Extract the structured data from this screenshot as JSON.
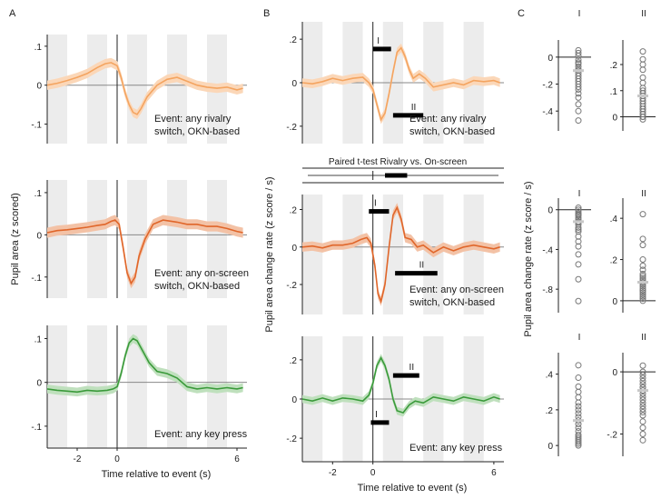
{
  "figure": {
    "panel_letters": [
      "A",
      "B",
      "C"
    ],
    "ttest_label": "Paired t-test Rivalry vs. On-screen",
    "colors": {
      "rivalry": "#f4a460",
      "rivalry_band": "#fbd7b8",
      "onscreen": "#e0662a",
      "onscreen_band": "#f3c2a6",
      "keypress": "#3a9a3a",
      "keypress_band": "#bfe0bd",
      "stripe": "#ececec",
      "dots": "#777777",
      "median": "#c8c8c8"
    }
  },
  "chart_data": [
    {
      "id": "A1",
      "type": "line",
      "panel": "A",
      "title": "",
      "xlabel": "",
      "ylabel": "",
      "xlim": [
        -3.5,
        6.5
      ],
      "ylim": [
        -0.15,
        0.13
      ],
      "yticks": [
        0.1,
        0,
        -0.1
      ],
      "ytick_labels": [
        ".1",
        "0",
        "-.1"
      ],
      "xticks": [],
      "xtick_labels": [],
      "event_label": [
        "Event: any rivalry",
        "switch, OKN-based"
      ],
      "series": [
        {
          "name": "pupil area",
          "color_key": "rivalry",
          "x": [
            -3.5,
            -3,
            -2.5,
            -2,
            -1.5,
            -1,
            -0.6,
            -0.3,
            0,
            0.2,
            0.4,
            0.6,
            0.8,
            1.0,
            1.2,
            1.5,
            2,
            2.5,
            3,
            3.5,
            4,
            4.5,
            5,
            5.5,
            6,
            6.3
          ],
          "values": [
            0.0,
            0.005,
            0.012,
            0.02,
            0.03,
            0.045,
            0.055,
            0.058,
            0.05,
            0.02,
            -0.02,
            -0.05,
            -0.07,
            -0.075,
            -0.06,
            -0.03,
            0.0,
            0.015,
            0.02,
            0.01,
            0.0,
            -0.005,
            -0.008,
            -0.005,
            -0.012,
            -0.008
          ],
          "band": 0.012
        }
      ],
      "bars": []
    },
    {
      "id": "A2",
      "type": "line",
      "panel": "A",
      "title": "",
      "xlabel": "",
      "ylabel": "Pupil area (z scored)",
      "xlim": [
        -3.5,
        6.5
      ],
      "ylim": [
        -0.15,
        0.13
      ],
      "yticks": [
        0.1,
        0,
        -0.1
      ],
      "ytick_labels": [
        ".1",
        "0",
        "-.1"
      ],
      "xticks": [],
      "xtick_labels": [],
      "event_label": [
        "Event: any on-screen",
        "switch, OKN-based"
      ],
      "series": [
        {
          "name": "pupil area",
          "color_key": "onscreen",
          "x": [
            -3.5,
            -3,
            -2.5,
            -2,
            -1.5,
            -1,
            -0.6,
            -0.3,
            -0.1,
            0.1,
            0.3,
            0.5,
            0.7,
            0.9,
            1.1,
            1.4,
            1.8,
            2.3,
            3,
            3.5,
            4,
            4.5,
            5,
            5.5,
            6,
            6.3
          ],
          "values": [
            0.005,
            0.01,
            0.012,
            0.015,
            0.018,
            0.022,
            0.025,
            0.032,
            0.035,
            0.025,
            -0.03,
            -0.09,
            -0.115,
            -0.1,
            -0.05,
            -0.01,
            0.025,
            0.035,
            0.03,
            0.025,
            0.025,
            0.02,
            0.02,
            0.015,
            0.008,
            0.005
          ],
          "band": 0.012
        }
      ],
      "bars": []
    },
    {
      "id": "A3",
      "type": "line",
      "panel": "A",
      "title": "",
      "xlabel": "Time relative to event (s)",
      "ylabel": "",
      "xlim": [
        -3.5,
        6.5
      ],
      "ylim": [
        -0.15,
        0.13
      ],
      "yticks": [
        0.1,
        0,
        -0.1
      ],
      "ytick_labels": [
        ".1",
        "0",
        "-.1"
      ],
      "xticks": [
        -2,
        0,
        6
      ],
      "xtick_labels": [
        "-2",
        "0",
        "6"
      ],
      "event_label": [
        "Event: any key press"
      ],
      "series": [
        {
          "name": "pupil area",
          "color_key": "keypress",
          "x": [
            -3.5,
            -3,
            -2.5,
            -2,
            -1.5,
            -1,
            -0.5,
            -0.2,
            0,
            0.2,
            0.4,
            0.6,
            0.8,
            1.0,
            1.3,
            1.6,
            2,
            2.5,
            3,
            3.5,
            4,
            4.5,
            5,
            5.5,
            6,
            6.3
          ],
          "values": [
            -0.015,
            -0.018,
            -0.02,
            -0.022,
            -0.018,
            -0.02,
            -0.018,
            -0.015,
            -0.01,
            0.02,
            0.06,
            0.09,
            0.1,
            0.095,
            0.07,
            0.045,
            0.025,
            0.02,
            0.01,
            -0.01,
            -0.015,
            -0.012,
            -0.015,
            -0.012,
            -0.015,
            -0.012
          ],
          "band": 0.01
        }
      ],
      "bars": []
    },
    {
      "id": "B1",
      "type": "line",
      "panel": "B",
      "title": "",
      "xlabel": "",
      "ylabel": "",
      "xlim": [
        -3.5,
        6.5
      ],
      "ylim": [
        -0.28,
        0.28
      ],
      "yticks": [
        0.2,
        0,
        -0.2
      ],
      "ytick_labels": [
        ".2",
        "0",
        "-.2"
      ],
      "xticks": [],
      "xtick_labels": [],
      "event_label": [
        "Event: any rivalry",
        "switch, OKN-based"
      ],
      "series": [
        {
          "name": "pupil area change rate",
          "color_key": "rivalry",
          "x": [
            -3.5,
            -3,
            -2.5,
            -2,
            -1.5,
            -1,
            -0.5,
            -0.2,
            0,
            0.2,
            0.4,
            0.6,
            0.8,
            1.0,
            1.2,
            1.4,
            1.6,
            1.8,
            2.0,
            2.3,
            2.6,
            3,
            3.5,
            4,
            4.5,
            5,
            5.5,
            6,
            6.3
          ],
          "values": [
            0.0,
            -0.005,
            0.005,
            0.02,
            0.01,
            0.02,
            0.025,
            0.0,
            -0.03,
            -0.1,
            -0.17,
            -0.14,
            -0.05,
            0.05,
            0.14,
            0.16,
            0.12,
            0.06,
            0.02,
            0.04,
            0.02,
            -0.02,
            -0.01,
            0.0,
            -0.01,
            0.01,
            0.005,
            0.01,
            0.0
          ],
          "band": 0.02
        }
      ],
      "bars": [
        {
          "label": "I",
          "x0": 0.0,
          "x1": 0.9,
          "y": 0.155
        },
        {
          "label": "II",
          "x0": 1.0,
          "x1": 2.5,
          "y": -0.15
        }
      ]
    },
    {
      "id": "B2",
      "type": "line",
      "panel": "B",
      "title": "",
      "xlabel": "",
      "ylabel": "Pupil area change rate (z score / s)",
      "xlim": [
        -3.5,
        6.5
      ],
      "ylim": [
        -0.36,
        0.28
      ],
      "yticks": [
        0.2,
        0,
        -0.2
      ],
      "ytick_labels": [
        ".2",
        "0",
        "-.2"
      ],
      "xticks": [],
      "xtick_labels": [],
      "event_label": [
        "Event: any on-screen",
        "switch, OKN-based"
      ],
      "series": [
        {
          "name": "pupil area change rate",
          "color_key": "onscreen",
          "x": [
            -3.5,
            -3,
            -2.5,
            -2,
            -1.5,
            -1,
            -0.6,
            -0.3,
            -0.1,
            0.1,
            0.25,
            0.4,
            0.6,
            0.8,
            1.0,
            1.2,
            1.4,
            1.6,
            1.9,
            2.2,
            2.5,
            3,
            3.5,
            4,
            4.5,
            5,
            5.5,
            6,
            6.3
          ],
          "values": [
            0.0,
            0.005,
            -0.005,
            0.01,
            0.01,
            0.02,
            0.04,
            0.05,
            0.02,
            -0.1,
            -0.25,
            -0.29,
            -0.2,
            0.0,
            0.17,
            0.21,
            0.15,
            0.05,
            0.04,
            0.0,
            0.01,
            -0.03,
            0.0,
            -0.02,
            0.0,
            0.01,
            0.0,
            -0.01,
            0.0
          ],
          "band": 0.025
        }
      ],
      "bars": [
        {
          "label": "I",
          "x0": -0.2,
          "x1": 0.8,
          "y": 0.19
        },
        {
          "label": "II",
          "x0": 1.1,
          "x1": 3.2,
          "y": -0.14
        }
      ]
    },
    {
      "id": "B3",
      "type": "line",
      "panel": "B",
      "title": "",
      "xlabel": "Time relative to event (s)",
      "ylabel": "",
      "xlim": [
        -3.5,
        6.5
      ],
      "ylim": [
        -0.32,
        0.32
      ],
      "yticks": [
        0.2,
        0,
        -0.2
      ],
      "ytick_labels": [
        ".2",
        "0",
        "-.2"
      ],
      "xticks": [
        -2,
        0,
        6
      ],
      "xtick_labels": [
        "-2",
        "0",
        "6"
      ],
      "event_label": [
        "Event: any key press"
      ],
      "series": [
        {
          "name": "pupil area change rate",
          "color_key": "keypress",
          "x": [
            -3.5,
            -3,
            -2.5,
            -2,
            -1.5,
            -1,
            -0.5,
            -0.2,
            0,
            0.2,
            0.4,
            0.6,
            0.8,
            1.0,
            1.2,
            1.5,
            1.8,
            2.1,
            2.5,
            3,
            3.5,
            4,
            4.5,
            5,
            5.5,
            6,
            6.3
          ],
          "values": [
            0.0,
            -0.01,
            0.005,
            -0.01,
            0.005,
            0.0,
            -0.01,
            0.02,
            0.08,
            0.17,
            0.21,
            0.17,
            0.1,
            0.0,
            -0.06,
            -0.07,
            -0.03,
            -0.01,
            -0.02,
            0.01,
            0.0,
            -0.01,
            0.01,
            0.0,
            -0.01,
            0.01,
            0.0
          ],
          "band": 0.02
        }
      ],
      "bars": [
        {
          "label": "II",
          "x0": 1.0,
          "x1": 2.3,
          "y": 0.12
        },
        {
          "label": "I",
          "x0": -0.1,
          "x1": 0.8,
          "y": -0.12
        }
      ]
    },
    {
      "id": "T",
      "type": "line",
      "panel": "B",
      "title": "Paired t-test Rivalry vs. On-screen",
      "xlim": [
        -3.5,
        6.5
      ],
      "ylim": [
        -1,
        1
      ],
      "bars": [
        {
          "label": "",
          "x0": 0.6,
          "x1": 1.7,
          "y": 0
        }
      ]
    },
    {
      "id": "C1",
      "type": "scatter",
      "panel": "C",
      "ylabel": "",
      "ylim": [
        -0.52,
        0.1
      ],
      "columns": [
        {
          "label": "I",
          "yticks": [
            0,
            -0.2,
            -0.4
          ],
          "ytick_labels": [
            "0",
            "-.2",
            "-.4"
          ],
          "zero_line": true,
          "values": [
            0.05,
            0.03,
            0.01,
            -0.02,
            -0.04,
            -0.05,
            -0.07,
            -0.09,
            -0.1,
            -0.12,
            -0.14,
            -0.16,
            -0.18,
            -0.2,
            -0.22,
            -0.24,
            -0.27,
            -0.3,
            -0.35,
            -0.4,
            -0.47
          ],
          "median": -0.1
        },
        {
          "label": "II",
          "yticks": [
            0.2,
            0.1,
            0
          ],
          "ytick_labels": [
            ".2",
            ".1",
            "0"
          ],
          "zero_line": true,
          "ylim": [
            -0.04,
            0.28
          ],
          "values": [
            0.25,
            0.22,
            0.2,
            0.18,
            0.15,
            0.13,
            0.11,
            0.1,
            0.09,
            0.08,
            0.07,
            0.06,
            0.05,
            0.04,
            0.03,
            0.02,
            0.01,
            0.0,
            -0.01,
            0.03,
            0.0
          ],
          "median": 0.08
        }
      ]
    },
    {
      "id": "C2",
      "type": "scatter",
      "panel": "C",
      "ylabel": "Pupil area change rate (z score / s)",
      "columns": [
        {
          "label": "I",
          "yticks": [
            0,
            -0.4,
            -0.8
          ],
          "ytick_labels": [
            "0",
            "-.4",
            "-.8"
          ],
          "zero_line": true,
          "ylim": [
            -1.0,
            0.08
          ],
          "values": [
            0.02,
            0.0,
            -0.02,
            -0.04,
            -0.06,
            -0.08,
            -0.1,
            -0.12,
            -0.15,
            -0.18,
            -0.22,
            -0.27,
            -0.32,
            -0.37,
            -0.45,
            -0.55,
            -0.7,
            -0.92,
            -0.05,
            -0.13,
            -0.2
          ],
          "median": -0.12
        },
        {
          "label": "II",
          "yticks": [
            0.4,
            0.2,
            0
          ],
          "ytick_labels": [
            ".4",
            ".2",
            "0"
          ],
          "zero_line": true,
          "ylim": [
            -0.04,
            0.48
          ],
          "values": [
            0.42,
            0.3,
            0.27,
            0.2,
            0.17,
            0.15,
            0.13,
            0.12,
            0.1,
            0.09,
            0.08,
            0.07,
            0.06,
            0.05,
            0.04,
            0.03,
            0.02,
            0.01,
            0.0,
            0.11,
            0.05
          ],
          "median": 0.09
        }
      ]
    },
    {
      "id": "C3",
      "type": "scatter",
      "panel": "C",
      "ylabel": "",
      "columns": [
        {
          "label": "I",
          "yticks": [
            0.4,
            0.2,
            0
          ],
          "ytick_labels": [
            ".4",
            ".2",
            "0"
          ],
          "zero_line": false,
          "ylim": [
            -0.04,
            0.5
          ],
          "values": [
            0.45,
            0.38,
            0.33,
            0.3,
            0.27,
            0.24,
            0.22,
            0.2,
            0.18,
            0.16,
            0.14,
            0.12,
            0.1,
            0.08,
            0.06,
            0.05,
            0.04,
            0.03,
            0.02,
            0.01,
            0.0
          ],
          "median": 0.14
        },
        {
          "label": "II",
          "yticks": [
            0,
            -0.2
          ],
          "ytick_labels": [
            "0",
            "-.2"
          ],
          "zero_line": true,
          "ylim": [
            -0.26,
            0.05
          ],
          "values": [
            0.02,
            0.0,
            -0.01,
            -0.02,
            -0.03,
            -0.04,
            -0.05,
            -0.06,
            -0.07,
            -0.08,
            -0.09,
            -0.1,
            -0.11,
            -0.12,
            -0.13,
            -0.14,
            -0.16,
            -0.18,
            -0.2,
            -0.22,
            -0.05
          ],
          "median": -0.06
        }
      ]
    }
  ]
}
